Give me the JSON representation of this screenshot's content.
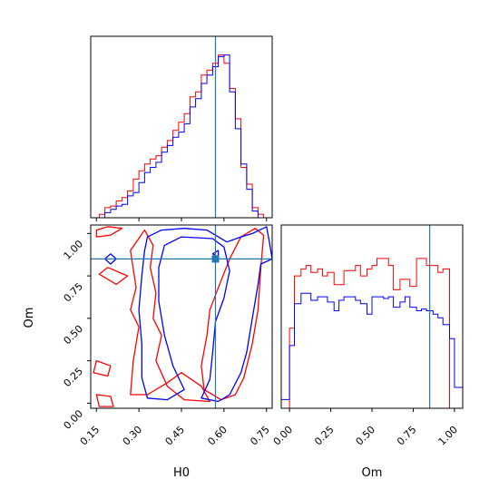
{
  "chart_data": [
    {
      "type": "histogram",
      "panel": "H0 marginal",
      "xlim": [
        0.13,
        0.77
      ],
      "truth": 0.57,
      "bin_edges": [
        0.16,
        0.18,
        0.2,
        0.22,
        0.24,
        0.26,
        0.28,
        0.3,
        0.32,
        0.34,
        0.36,
        0.38,
        0.4,
        0.42,
        0.44,
        0.46,
        0.48,
        0.5,
        0.52,
        0.54,
        0.56,
        0.58,
        0.6,
        0.62,
        0.64,
        0.66,
        0.68,
        0.7,
        0.72,
        0.74
      ],
      "series": [
        {
          "color": "#ff0000",
          "values": [
            0.02,
            0.06,
            0.07,
            0.1,
            0.12,
            0.16,
            0.23,
            0.28,
            0.32,
            0.35,
            0.37,
            0.42,
            0.46,
            0.52,
            0.57,
            0.62,
            0.72,
            0.75,
            0.85,
            0.88,
            0.92,
            0.97,
            0.92,
            0.77,
            0.59,
            0.3,
            0.2,
            0.06,
            0.02
          ]
        },
        {
          "color": "#0000ff",
          "values": [
            0.0,
            0.03,
            0.05,
            0.07,
            0.08,
            0.13,
            0.15,
            0.21,
            0.27,
            0.3,
            0.33,
            0.39,
            0.43,
            0.48,
            0.51,
            0.56,
            0.66,
            0.71,
            0.8,
            0.85,
            0.9,
            0.96,
            0.97,
            0.75,
            0.53,
            0.32,
            0.17,
            0.04,
            0.0
          ]
        }
      ]
    },
    {
      "type": "contour",
      "panel": "H0 vs Om",
      "xlabel": "H0",
      "ylabel": "Om",
      "xlim": [
        0.13,
        0.77
      ],
      "ylim": [
        -0.03,
        1.05
      ],
      "xticks": [
        "0.15",
        "0.30",
        "0.45",
        "0.60",
        "0.75"
      ],
      "yticks": [
        "0.00",
        "0.25",
        "0.50",
        "0.75",
        "1.00"
      ],
      "truth": {
        "x": 0.57,
        "y": 0.85
      },
      "series": [
        {
          "color": "#ff0000",
          "contours": [
            [
              [
                0.15,
                0.98
              ],
              [
                0.2,
                0.99
              ],
              [
                0.24,
                1.03
              ],
              [
                0.19,
                1.04
              ],
              [
                0.15,
                1.02
              ]
            ],
            [
              [
                0.15,
                0.05
              ],
              [
                0.2,
                0.04
              ],
              [
                0.21,
                -0.02
              ],
              [
                0.16,
                -0.02
              ]
            ],
            [
              [
                0.14,
                0.18
              ],
              [
                0.19,
                0.16
              ],
              [
                0.2,
                0.22
              ],
              [
                0.15,
                0.25
              ]
            ],
            [
              [
                0.16,
                0.76
              ],
              [
                0.22,
                0.7
              ],
              [
                0.26,
                0.75
              ],
              [
                0.19,
                0.8
              ]
            ],
            [
              [
                0.27,
                0.05
              ],
              [
                0.28,
                0.25
              ],
              [
                0.3,
                0.45
              ],
              [
                0.27,
                0.55
              ],
              [
                0.29,
                0.68
              ],
              [
                0.27,
                0.9
              ],
              [
                0.32,
                1.02
              ],
              [
                0.35,
                0.93
              ],
              [
                0.34,
                0.8
              ],
              [
                0.36,
                0.65
              ],
              [
                0.35,
                0.5
              ],
              [
                0.38,
                0.4
              ],
              [
                0.36,
                0.25
              ],
              [
                0.4,
                0.1
              ],
              [
                0.46,
                0.02
              ],
              [
                0.55,
                0.01
              ],
              [
                0.52,
                0.1
              ],
              [
                0.45,
                0.18
              ],
              [
                0.4,
                0.12
              ],
              [
                0.33,
                0.05
              ]
            ],
            [
              [
                0.53,
                0.08
              ],
              [
                0.52,
                0.22
              ],
              [
                0.54,
                0.4
              ],
              [
                0.55,
                0.55
              ],
              [
                0.58,
                0.68
              ],
              [
                0.62,
                0.85
              ],
              [
                0.66,
                0.98
              ],
              [
                0.71,
                1.03
              ],
              [
                0.74,
                0.99
              ],
              [
                0.73,
                0.8
              ],
              [
                0.72,
                0.55
              ],
              [
                0.7,
                0.35
              ],
              [
                0.67,
                0.15
              ],
              [
                0.64,
                0.05
              ],
              [
                0.59,
                0.02
              ]
            ]
          ]
        },
        {
          "color": "#0000ff",
          "contours": [
            [
              [
                0.33,
                0.98
              ],
              [
                0.38,
                1.02
              ],
              [
                0.46,
                1.03
              ],
              [
                0.54,
                1.02
              ],
              [
                0.61,
                0.95
              ],
              [
                0.66,
                0.98
              ],
              [
                0.7,
                1.0
              ],
              [
                0.75,
                1.04
              ],
              [
                0.76,
                0.95
              ],
              [
                0.77,
                0.85
              ],
              [
                0.73,
                0.82
              ],
              [
                0.72,
                0.7
              ],
              [
                0.7,
                0.5
              ],
              [
                0.68,
                0.3
              ],
              [
                0.66,
                0.18
              ],
              [
                0.62,
                0.05
              ],
              [
                0.58,
                0.01
              ],
              [
                0.52,
                0.03
              ],
              [
                0.55,
                0.14
              ],
              [
                0.56,
                0.3
              ],
              [
                0.57,
                0.48
              ],
              [
                0.6,
                0.62
              ],
              [
                0.62,
                0.78
              ],
              [
                0.6,
                0.92
              ],
              [
                0.56,
                0.97
              ],
              [
                0.45,
                0.98
              ],
              [
                0.39,
                0.93
              ],
              [
                0.37,
                0.8
              ],
              [
                0.37,
                0.6
              ],
              [
                0.39,
                0.4
              ],
              [
                0.42,
                0.22
              ],
              [
                0.46,
                0.08
              ],
              [
                0.4,
                0.02
              ],
              [
                0.33,
                0.03
              ],
              [
                0.31,
                0.15
              ],
              [
                0.31,
                0.35
              ],
              [
                0.3,
                0.55
              ],
              [
                0.31,
                0.75
              ],
              [
                0.32,
                0.9
              ]
            ],
            [
              [
                0.18,
                0.85
              ],
              [
                0.2,
                0.88
              ],
              [
                0.22,
                0.85
              ],
              [
                0.2,
                0.82
              ]
            ],
            [
              [
                0.56,
                0.88
              ],
              [
                0.58,
                0.9
              ],
              [
                0.58,
                0.86
              ]
            ]
          ]
        }
      ]
    },
    {
      "type": "histogram",
      "panel": "Om marginal",
      "xlabel": "Om",
      "xlim": [
        -0.05,
        1.05
      ],
      "xticks": [
        "0.00",
        "0.25",
        "0.50",
        "0.75",
        "1.00"
      ],
      "truth": 0.85,
      "bin_edges": [
        -0.05,
        0.0,
        0.03,
        0.07,
        0.1,
        0.13,
        0.17,
        0.2,
        0.23,
        0.27,
        0.3,
        0.33,
        0.37,
        0.4,
        0.43,
        0.47,
        0.5,
        0.53,
        0.57,
        0.6,
        0.63,
        0.67,
        0.7,
        0.73,
        0.77,
        0.8,
        0.83,
        0.87,
        0.9,
        0.93,
        0.97,
        1.0,
        1.03,
        1.05
      ],
      "series": [
        {
          "color": "#ff0000",
          "values": [
            0.0,
            0.46,
            0.76,
            0.8,
            0.82,
            0.78,
            0.8,
            0.76,
            0.78,
            0.71,
            0.71,
            0.79,
            0.79,
            0.82,
            0.76,
            0.8,
            0.82,
            0.86,
            0.86,
            0.82,
            0.68,
            0.74,
            0.74,
            0.7,
            0.86,
            0.86,
            0.82,
            0.82,
            0.78,
            0.8,
            0.0,
            0.0,
            0.0
          ]
        },
        {
          "color": "#0000ff",
          "values": [
            0.05,
            0.36,
            0.6,
            0.66,
            0.66,
            0.62,
            0.64,
            0.64,
            0.61,
            0.56,
            0.62,
            0.64,
            0.64,
            0.62,
            0.6,
            0.54,
            0.64,
            0.64,
            0.63,
            0.64,
            0.58,
            0.61,
            0.64,
            0.58,
            0.56,
            0.57,
            0.56,
            0.54,
            0.52,
            0.48,
            0.4,
            0.12,
            0.12
          ]
        }
      ]
    }
  ]
}
